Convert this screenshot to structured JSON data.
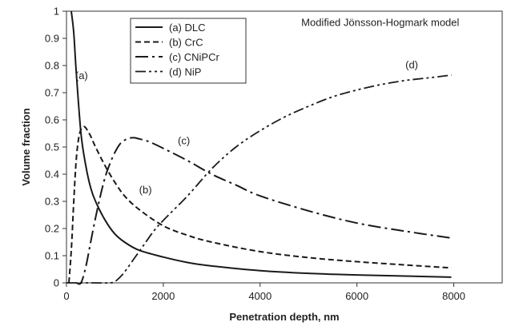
{
  "chart_data": {
    "type": "line",
    "title": "",
    "xlabel": "Penetration  depth,  nm",
    "ylabel": "Volume  fraction",
    "xlim": [
      0,
      9000
    ],
    "ylim": [
      0,
      1
    ],
    "xticks": [
      0,
      2000,
      4000,
      6000,
      8000
    ],
    "xtick_labels": [
      "0",
      "2000",
      "4000",
      "6000",
      "8000"
    ],
    "yticks": [
      0,
      0.1,
      0.2,
      0.3,
      0.4,
      0.5,
      0.6,
      0.7,
      0.8,
      0.9,
      1
    ],
    "ytick_labels": [
      "0",
      "0.1",
      "0.2",
      "0.3",
      "0.4",
      "0.5",
      "0.6",
      "0.7",
      "0.8",
      "0.9",
      "1"
    ],
    "grid": false,
    "legend_position": "top-left",
    "model_label": "Modified  Jönsson-Hogmark  model",
    "series": [
      {
        "name": "(a)  DLC",
        "dash": "solid",
        "annotation": "(a)",
        "x": [
          100,
          150,
          200,
          300,
          400,
          500,
          600,
          800,
          1000,
          1200,
          1500,
          2000,
          2500,
          3000,
          4000,
          5000,
          6000,
          7000,
          7950
        ],
        "y": [
          1.0,
          0.92,
          0.78,
          0.55,
          0.43,
          0.35,
          0.3,
          0.23,
          0.18,
          0.15,
          0.12,
          0.095,
          0.075,
          0.062,
          0.045,
          0.035,
          0.029,
          0.025,
          0.021
        ]
      },
      {
        "name": "(b)  CrC",
        "dash": "dashed",
        "annotation": "(b)",
        "x": [
          50,
          100,
          150,
          200,
          250,
          300,
          350,
          400,
          500,
          600,
          800,
          1000,
          1200,
          1500,
          2000,
          2500,
          3000,
          4000,
          5000,
          6000,
          7000,
          7950
        ],
        "y": [
          0.0,
          0.12,
          0.3,
          0.45,
          0.53,
          0.565,
          0.575,
          0.57,
          0.54,
          0.5,
          0.43,
          0.37,
          0.32,
          0.27,
          0.21,
          0.175,
          0.15,
          0.115,
          0.093,
          0.078,
          0.066,
          0.055
        ]
      },
      {
        "name": "(c)  CNiPCr",
        "dash": "dash-dot",
        "annotation": "(c)",
        "x": [
          200,
          300,
          400,
          500,
          600,
          700,
          800,
          900,
          1000,
          1100,
          1200,
          1300,
          1400,
          1500,
          1700,
          2000,
          2500,
          3000,
          3500,
          4000,
          5000,
          6000,
          7000,
          7950
        ],
        "y": [
          0.0,
          0.0,
          0.06,
          0.15,
          0.24,
          0.32,
          0.39,
          0.44,
          0.48,
          0.51,
          0.525,
          0.533,
          0.534,
          0.53,
          0.52,
          0.495,
          0.45,
          0.4,
          0.36,
          0.32,
          0.265,
          0.22,
          0.19,
          0.165
        ]
      },
      {
        "name": "(d)  NiP",
        "dash": "dash-dot-dot",
        "annotation": "(d)",
        "x": [
          0,
          500,
          900,
          1000,
          1100,
          1200,
          1400,
          1600,
          1800,
          2000,
          2500,
          3000,
          3500,
          4000,
          4500,
          5000,
          5500,
          6000,
          6500,
          7000,
          7500,
          7950
        ],
        "y": [
          0.0,
          0.0,
          0.0,
          0.005,
          0.02,
          0.04,
          0.09,
          0.14,
          0.19,
          0.23,
          0.32,
          0.42,
          0.5,
          0.56,
          0.61,
          0.65,
          0.685,
          0.71,
          0.73,
          0.745,
          0.755,
          0.765
        ]
      }
    ],
    "annotations": [
      {
        "text": "(a)",
        "x": 180,
        "y": 0.75
      },
      {
        "text": "(b)",
        "x": 1500,
        "y": 0.33
      },
      {
        "text": "(c)",
        "x": 2300,
        "y": 0.51
      },
      {
        "text": "(d)",
        "x": 7000,
        "y": 0.79
      }
    ]
  }
}
